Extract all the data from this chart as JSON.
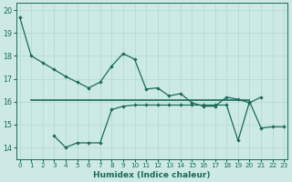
{
  "xlabel": "Humidex (Indice chaleur)",
  "bg_color": "#cce9e5",
  "grid_color": "#b0d8d2",
  "line_color": "#1a6b5a",
  "line1_x": [
    0,
    1,
    2,
    3,
    4,
    5,
    6,
    7,
    8,
    9,
    10,
    11,
    12,
    13,
    14,
    15,
    16,
    17,
    18,
    19,
    20,
    21
  ],
  "line1_y": [
    19.7,
    18.0,
    17.7,
    17.4,
    17.1,
    16.85,
    16.6,
    16.85,
    17.55,
    18.1,
    17.85,
    16.55,
    16.6,
    16.25,
    16.35,
    15.95,
    15.8,
    15.8,
    16.2,
    16.1,
    15.95,
    16.2
  ],
  "flat_line_x": [
    1,
    20
  ],
  "flat_line_y": [
    16.05,
    16.05
  ],
  "line3_x": [
    3,
    4,
    5,
    6,
    7,
    8,
    9,
    10,
    11,
    12,
    13,
    14,
    15,
    16,
    17,
    18,
    19,
    20,
    21,
    22,
    23
  ],
  "line3_y": [
    14.5,
    14.0,
    14.2,
    14.2,
    14.2,
    15.65,
    15.8,
    15.85,
    15.85,
    15.85,
    15.85,
    15.85,
    15.85,
    15.85,
    15.85,
    15.85,
    14.3,
    16.0,
    14.85,
    14.9,
    14.9
  ],
  "ylim": [
    13.5,
    20.3
  ],
  "xlim": [
    -0.3,
    23.3
  ],
  "xticks": [
    0,
    1,
    2,
    3,
    4,
    5,
    6,
    7,
    8,
    9,
    10,
    11,
    12,
    13,
    14,
    15,
    16,
    17,
    18,
    19,
    20,
    21,
    22,
    23
  ],
  "yticks": [
    14,
    15,
    16,
    17,
    18,
    19,
    20
  ]
}
